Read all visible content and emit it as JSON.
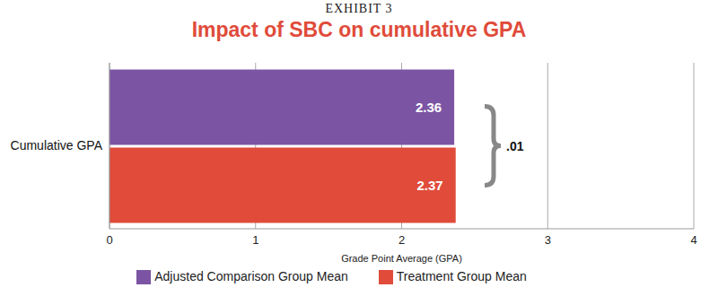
{
  "chart_data": {
    "type": "bar",
    "orientation": "horizontal",
    "subtitle": "EXHIBIT 3",
    "title": "Impact of SBC on cumulative GPA",
    "categories": [
      "Cumulative GPA"
    ],
    "series": [
      {
        "name": "Adjusted Comparison Group Mean",
        "color": "#7b55a3",
        "values": [
          2.36
        ]
      },
      {
        "name": "Treatment Group Mean",
        "color": "#e04b3a",
        "values": [
          2.37
        ]
      }
    ],
    "x_label": "Grade Point Average (GPA)",
    "xlim": [
      0,
      4
    ],
    "xticks": [
      0,
      1,
      2,
      3,
      4
    ],
    "grid": true,
    "data_labels": true,
    "legend": "bottom",
    "annotation": ".01"
  }
}
